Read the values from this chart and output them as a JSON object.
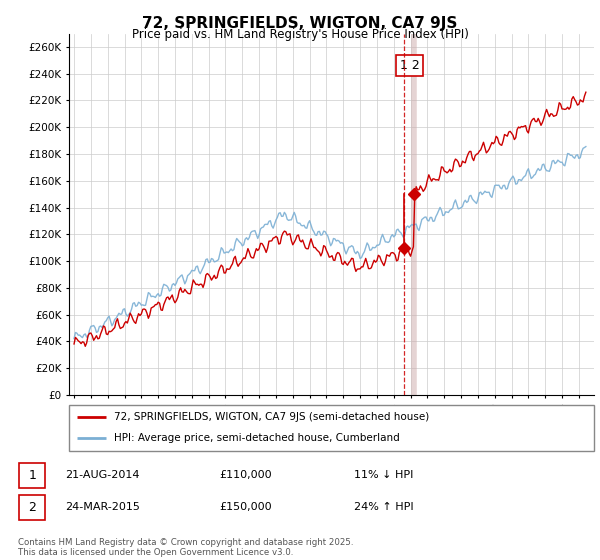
{
  "title": "72, SPRINGFIELDS, WIGTON, CA7 9JS",
  "subtitle": "Price paid vs. HM Land Registry's House Price Index (HPI)",
  "legend_line1": "72, SPRINGFIELDS, WIGTON, CA7 9JS (semi-detached house)",
  "legend_line2": "HPI: Average price, semi-detached house, Cumberland",
  "transaction1_date": "21-AUG-2014",
  "transaction1_price": "£110,000",
  "transaction1_hpi": "11% ↓ HPI",
  "transaction2_date": "24-MAR-2015",
  "transaction2_price": "£150,000",
  "transaction2_hpi": "24% ↑ HPI",
  "footnote": "Contains HM Land Registry data © Crown copyright and database right 2025.\nThis data is licensed under the Open Government Licence v3.0.",
  "price_color": "#cc0000",
  "hpi_color": "#7bafd4",
  "vline1_color": "#cc0000",
  "vline2_color": "#ccaaaa",
  "ylim_min": 0,
  "ylim_max": 270000,
  "ytick_step": 20000,
  "x_start_year": 1995,
  "x_end_year": 2025,
  "transaction1_year": 2014.63,
  "transaction2_year": 2015.23,
  "marker1_price": 110000,
  "marker2_price": 150000,
  "background_color": "#ffffff",
  "grid_color": "#cccccc"
}
